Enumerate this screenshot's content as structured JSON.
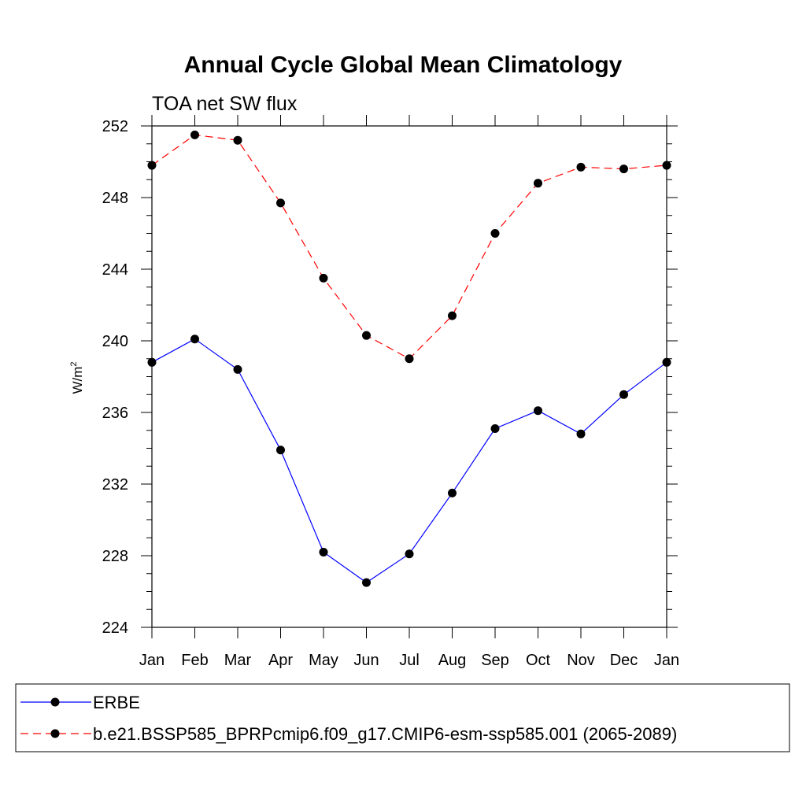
{
  "chart_data": {
    "type": "line",
    "title": "Annual Cycle Global Mean Climatology",
    "subtitle": "TOA net SW flux",
    "ylabel": "W/m",
    "ylabel_superscript": "2",
    "xlabel": "",
    "categories": [
      "Jan",
      "Feb",
      "Mar",
      "Apr",
      "May",
      "Jun",
      "Jul",
      "Aug",
      "Sep",
      "Oct",
      "Nov",
      "Dec",
      "Jan"
    ],
    "ylim": [
      224,
      252
    ],
    "yticks": [
      224,
      228,
      232,
      236,
      240,
      244,
      248,
      252
    ],
    "ytick_labels": [
      "224",
      "228",
      "232",
      "236",
      "240",
      "244",
      "248",
      "252"
    ],
    "series": [
      {
        "name": "ERBE",
        "color": "#0000ff",
        "dash": "solid",
        "values": [
          238.8,
          240.1,
          238.4,
          233.9,
          228.2,
          226.5,
          228.1,
          231.5,
          235.1,
          236.1,
          234.8,
          237.0,
          238.8
        ]
      },
      {
        "name": "b.e21.BSSP585_BPRPcmip6.f09_g17.CMIP6-esm-ssp585.001 (2065-2089)",
        "color": "#ff0000",
        "dash": "dashed",
        "values": [
          249.8,
          251.5,
          251.2,
          247.7,
          243.5,
          240.3,
          239.0,
          241.4,
          246.0,
          248.8,
          249.7,
          249.6,
          249.8
        ]
      }
    ],
    "marker_color": "#000000",
    "legend_position": "bottom"
  }
}
